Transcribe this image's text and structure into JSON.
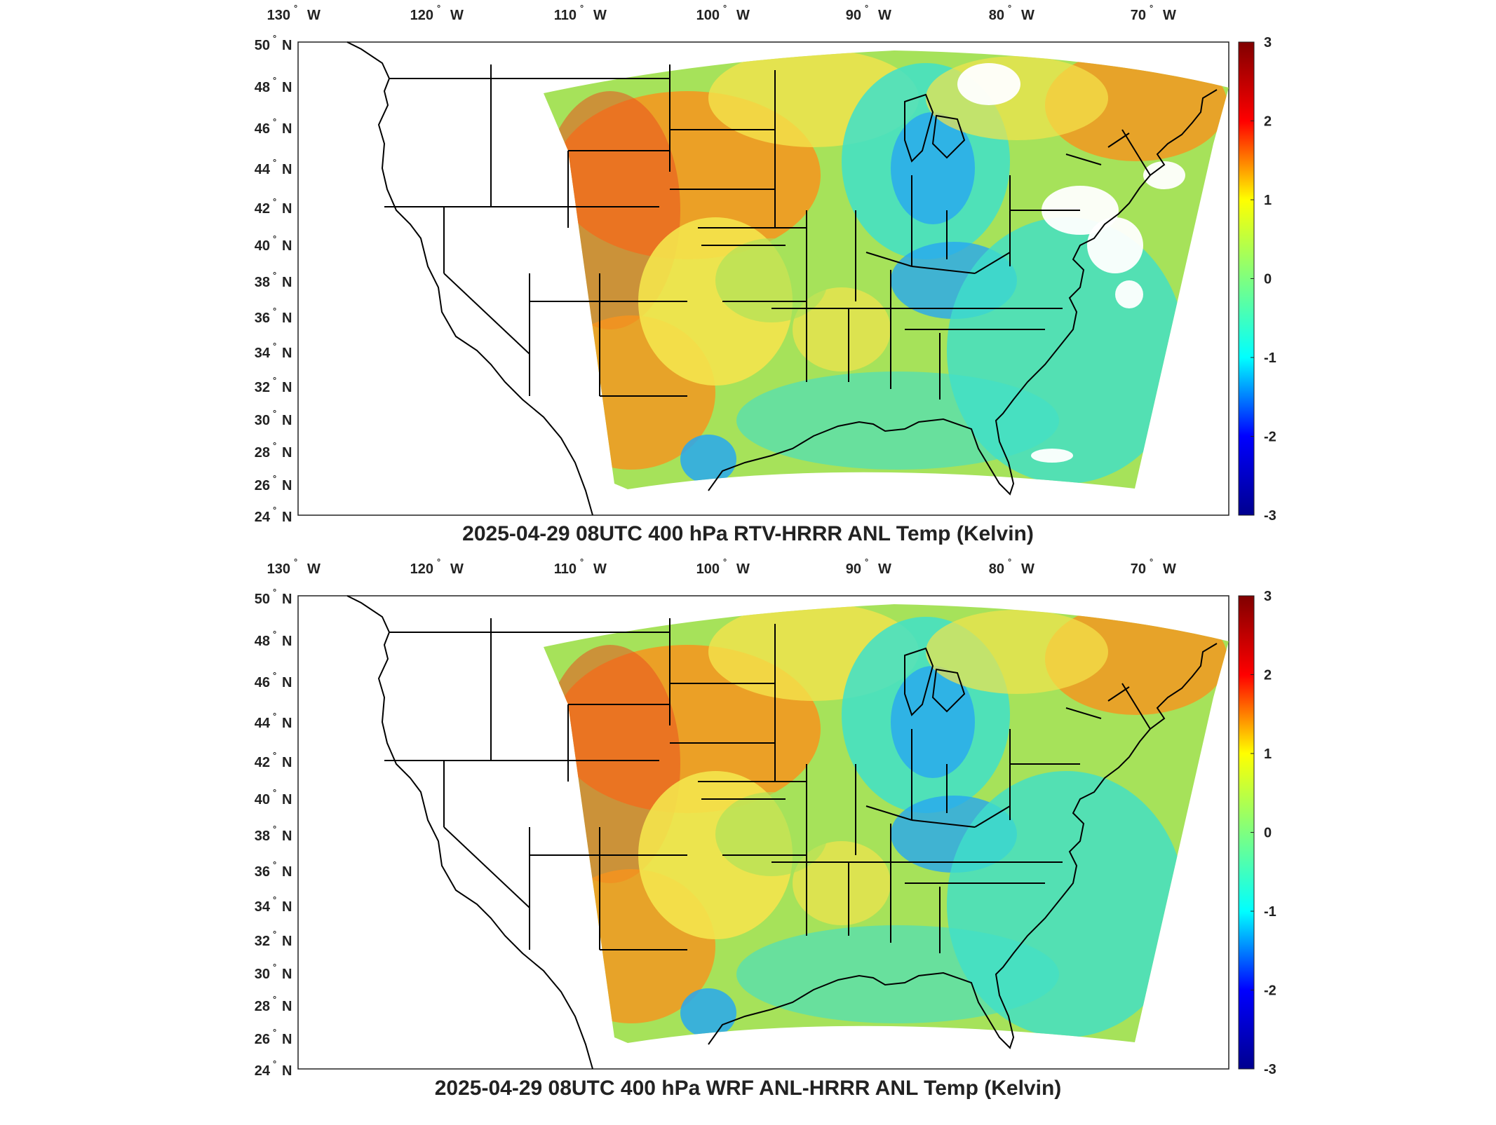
{
  "panels": [
    {
      "title": "2025-04-29 08UTC 400 hPa RTV-HRRR ANL Temp (Kelvin)",
      "lon_labels": [
        "130",
        "120",
        "110",
        "100",
        "90",
        "80",
        "70"
      ],
      "lon_suffix": "W",
      "lat_labels": [
        "50",
        "48",
        "46",
        "44",
        "42",
        "40",
        "38",
        "36",
        "34",
        "32",
        "30",
        "28",
        "26",
        "24"
      ],
      "lat_suffix": "N",
      "colorbar": {
        "ticks": [
          "3",
          "2",
          "1",
          "0",
          "-1",
          "-2",
          "-3"
        ],
        "range": [
          -3,
          3
        ]
      }
    },
    {
      "title": "2025-04-29 08UTC 400 hPa WRF ANL-HRRR ANL Temp (Kelvin)",
      "lon_labels": [
        "130",
        "120",
        "110",
        "100",
        "90",
        "80",
        "70"
      ],
      "lon_suffix": "W",
      "lat_labels": [
        "50",
        "48",
        "46",
        "44",
        "42",
        "40",
        "38",
        "36",
        "34",
        "32",
        "30",
        "28",
        "26",
        "24"
      ],
      "lat_suffix": "N",
      "colorbar": {
        "ticks": [
          "3",
          "2",
          "1",
          "0",
          "-1",
          "-2",
          "-3"
        ],
        "range": [
          -3,
          3
        ]
      }
    }
  ],
  "colormap": [
    "#00008f",
    "#0000ff",
    "#00ffff",
    "#7fff7f",
    "#ffff00",
    "#ff0000",
    "#800000"
  ],
  "map_colors": {
    "warm": "#f7941d",
    "hot": "#e9501f",
    "mild": "#f4e44c",
    "neutral": "#a6e25a",
    "cool": "#3fe0c9",
    "cold": "#27a8f0",
    "coast": "#000000",
    "missing": "#ffffff"
  }
}
